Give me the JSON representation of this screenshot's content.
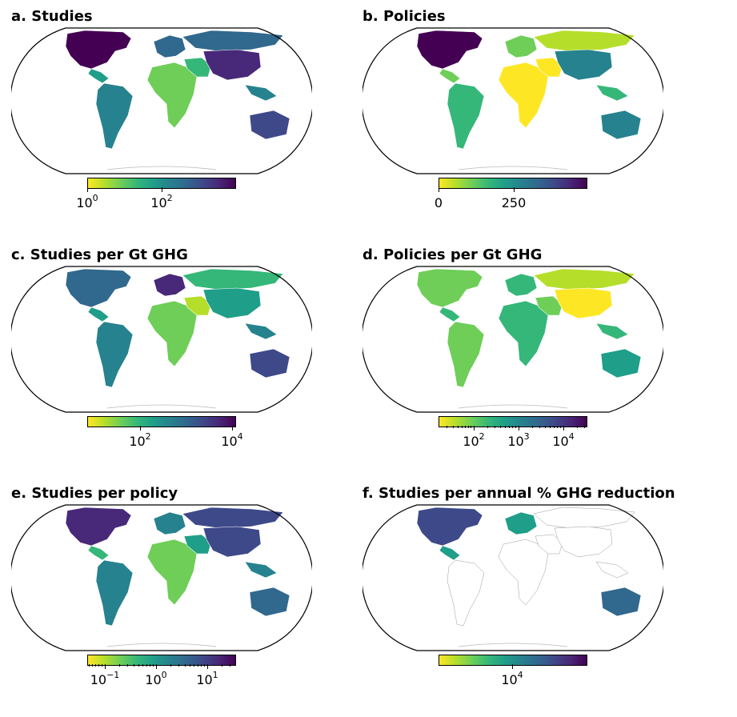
{
  "colors": {
    "viridis": [
      "#fde725",
      "#b5de2b",
      "#6ece58",
      "#35b779",
      "#1f9e89",
      "#26828e",
      "#31688e",
      "#3e4989",
      "#482878",
      "#440154"
    ],
    "land_empty": "#ffffff",
    "outline": "#000000"
  },
  "panels": [
    {
      "title": "a. Studies",
      "colorbar": {
        "scale": "log",
        "ticks": [
          {
            "base": "10",
            "exp": "0"
          },
          {
            "base": "10",
            "exp": "2"
          }
        ]
      },
      "palette": {
        "na": 9,
        "ca": 4,
        "sa": 5,
        "eu": 6,
        "africa": 2,
        "me": 3,
        "ru": 6,
        "asia": 8,
        "sea": 5,
        "au": 7
      }
    },
    {
      "title": "b. Policies",
      "colorbar": {
        "scale": "linear",
        "ticks": [
          {
            "base": "0",
            "exp": ""
          },
          {
            "base": "250",
            "exp": ""
          }
        ]
      },
      "palette": {
        "na": 9,
        "ca": 2,
        "sa": 3,
        "eu": 2,
        "africa": 0,
        "me": 0,
        "ru": 1,
        "asia": 5,
        "sea": 3,
        "au": 5
      }
    },
    {
      "title": "c. Studies per Gt GHG",
      "colorbar": {
        "scale": "log",
        "ticks": [
          {
            "base": "10",
            "exp": "2"
          },
          {
            "base": "10",
            "exp": "4"
          }
        ]
      },
      "palette": {
        "na": 6,
        "ca": 4,
        "sa": 5,
        "eu": 8,
        "africa": 2,
        "me": 1,
        "ru": 3,
        "asia": 4,
        "sea": 5,
        "au": 7
      }
    },
    {
      "title": "d. Policies per Gt GHG",
      "colorbar": {
        "scale": "log",
        "ticks": [
          {
            "base": "10",
            "exp": "2"
          },
          {
            "base": "10",
            "exp": "3"
          },
          {
            "base": "10",
            "exp": "4"
          }
        ]
      },
      "palette": {
        "na": 2,
        "ca": 3,
        "sa": 2,
        "eu": 3,
        "africa": 3,
        "me": 2,
        "ru": 1,
        "asia": 0,
        "sea": 3,
        "au": 4
      }
    },
    {
      "title": "e. Studies per policy",
      "colorbar": {
        "scale": "log",
        "ticks": [
          {
            "base": "10",
            "exp": "−1"
          },
          {
            "base": "10",
            "exp": "0"
          },
          {
            "base": "10",
            "exp": "1"
          }
        ]
      },
      "palette": {
        "na": 8,
        "ca": 3,
        "sa": 5,
        "eu": 5,
        "africa": 2,
        "me": 4,
        "ru": 7,
        "asia": 7,
        "sea": 5,
        "au": 6
      }
    },
    {
      "title": "f. Studies per annual % GHG reduction",
      "colorbar": {
        "scale": "log",
        "ticks": [
          {
            "base": "10",
            "exp": "4"
          }
        ]
      },
      "palette": {
        "na": 7,
        "ca": 4,
        "sa": -1,
        "eu": 4,
        "africa": -1,
        "me": -1,
        "ru": -1,
        "asia": -1,
        "sea": -1,
        "au": 6
      }
    }
  ]
}
